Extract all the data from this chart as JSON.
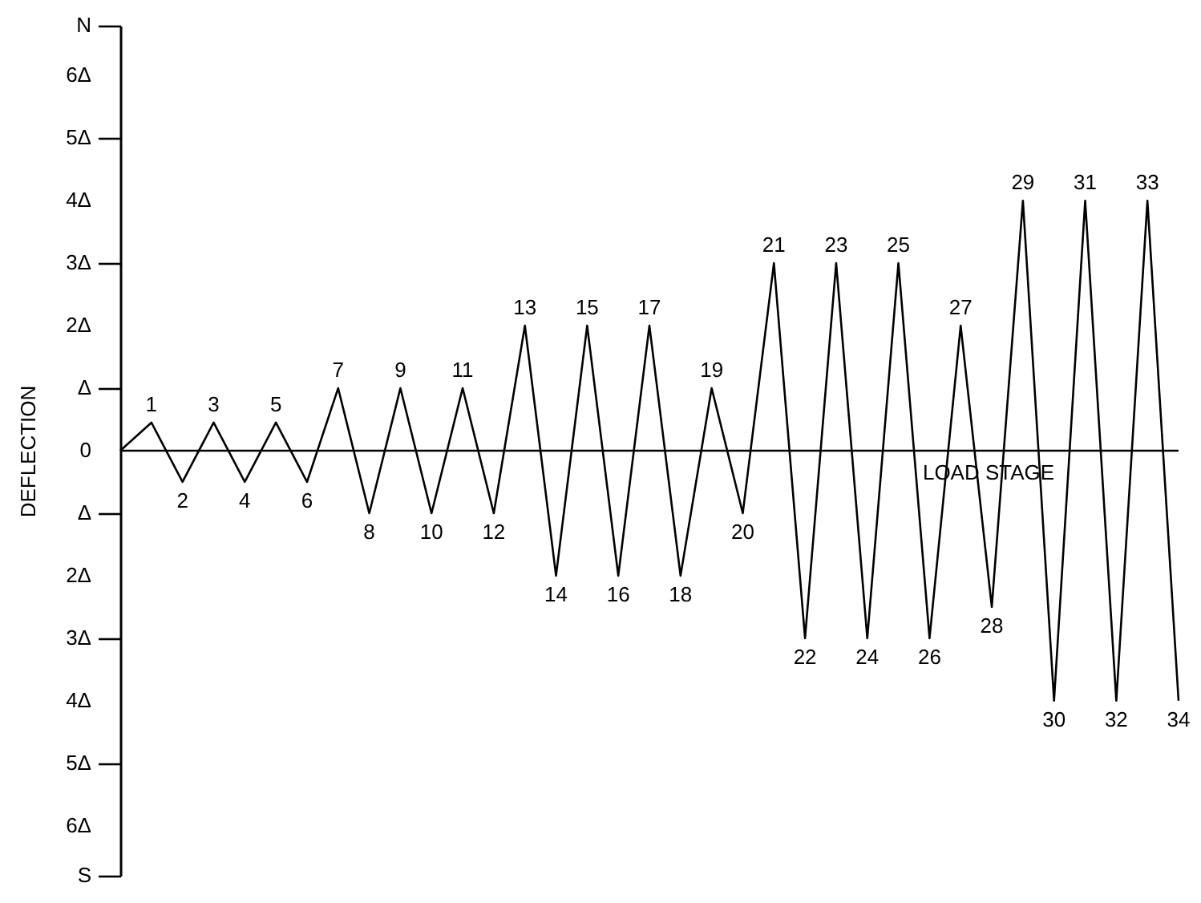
{
  "chart_data": {
    "type": "line",
    "ylabel": "DEFLECTION",
    "xlabel": "LOAD STAGE",
    "categories": [
      null,
      null,
      null,
      null,
      null,
      null,
      null,
      null,
      null,
      null,
      null,
      null,
      null,
      null,
      null,
      null,
      null,
      null,
      null,
      null,
      null,
      null,
      null,
      null,
      null,
      null,
      null,
      null,
      null,
      null,
      null,
      null,
      null,
      null,
      null
    ],
    "series": [
      {
        "color": "#000000",
        "values": [
          0,
          0.45,
          -0.5,
          0.45,
          -0.5,
          0.45,
          -0.5,
          1,
          -1,
          1,
          -1,
          1,
          -1,
          2,
          -2,
          2,
          -2,
          2,
          -2,
          1,
          -1,
          3,
          -3,
          3,
          -3,
          3,
          -3,
          2,
          -2.5,
          4,
          -4,
          4,
          -4,
          4,
          -4
        ]
      }
    ],
    "annotations": [
      {
        "text": "1",
        "y": 0.45
      },
      {
        "text": "2",
        "y": -0.5
      },
      {
        "text": "3",
        "y": 0.45
      },
      {
        "text": "4",
        "y": -0.5
      },
      {
        "text": "5",
        "y": 0.45
      },
      {
        "text": "6",
        "y": -0.5
      },
      {
        "text": "7",
        "y": 1
      },
      {
        "text": "8",
        "y": -1
      },
      {
        "text": "9",
        "y": 1
      },
      {
        "text": "10",
        "y": -1
      },
      {
        "text": "11",
        "y": 1
      },
      {
        "text": "12",
        "y": -1
      },
      {
        "text": "13",
        "y": 2
      },
      {
        "text": "14",
        "y": -2
      },
      {
        "text": "15",
        "y": 2
      },
      {
        "text": "16",
        "y": -2
      },
      {
        "text": "17",
        "y": 2
      },
      {
        "text": "18",
        "y": -2
      },
      {
        "text": "19",
        "y": 1
      },
      {
        "text": "20",
        "y": -1
      },
      {
        "text": "21",
        "y": 3
      },
      {
        "text": "22",
        "y": -3
      },
      {
        "text": "23",
        "y": 3
      },
      {
        "text": "24",
        "y": -3
      },
      {
        "text": "25",
        "y": 3
      },
      {
        "text": "26",
        "y": -3
      },
      {
        "text": "27",
        "y": 2
      },
      {
        "text": "28",
        "y": -2.5
      },
      {
        "text": "29",
        "y": 4
      },
      {
        "text": "30",
        "y": -4
      },
      {
        "text": "31",
        "y": 4
      },
      {
        "text": "32",
        "y": -4
      },
      {
        "text": "33",
        "y": 4
      },
      {
        "text": "34",
        "y": -4
      }
    ],
    "ylim": [
      -6.8,
      6.8
    ],
    "yticks": [
      {
        "value": 6.8,
        "label": "N"
      },
      {
        "value": 6,
        "label": "6Δ"
      },
      {
        "value": 5,
        "label": "5Δ"
      },
      {
        "value": 4,
        "label": "4Δ"
      },
      {
        "value": 3,
        "label": "3Δ"
      },
      {
        "value": 2,
        "label": "2Δ"
      },
      {
        "value": 1,
        "label": "Δ"
      },
      0,
      {
        "value": -1,
        "label": "Δ"
      },
      {
        "value": -2,
        "label": "2Δ"
      },
      {
        "value": -3,
        "label": "3Δ"
      },
      {
        "value": -4,
        "label": "4Δ"
      },
      {
        "value": -5,
        "label": "5Δ"
      },
      {
        "value": -6,
        "label": "6Δ"
      },
      {
        "value": -6.8,
        "label": "S"
      }
    ],
    "tick_labels": "y",
    "grid": false,
    "marker": "none",
    "line_style": "solid",
    "ref_lines": [
      {
        "axis": "y",
        "value": 0
      }
    ]
  }
}
